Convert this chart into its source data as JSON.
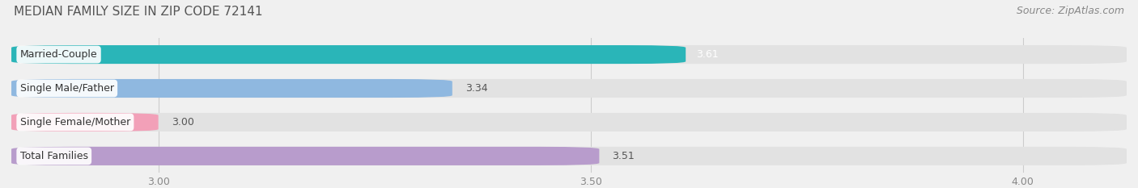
{
  "title": "MEDIAN FAMILY SIZE IN ZIP CODE 72141",
  "source": "Source: ZipAtlas.com",
  "categories": [
    "Married-Couple",
    "Single Male/Father",
    "Single Female/Mother",
    "Total Families"
  ],
  "values": [
    3.61,
    3.34,
    3.0,
    3.51
  ],
  "bar_colors": [
    "#2ab5b8",
    "#8fb8e0",
    "#f2a0b8",
    "#b89ccc"
  ],
  "value_white": [
    true,
    false,
    false,
    false
  ],
  "xlim_left": 2.83,
  "xlim_right": 4.12,
  "xticks": [
    3.0,
    3.5,
    4.0
  ],
  "xtick_labels": [
    "3.00",
    "3.50",
    "4.00"
  ],
  "bg_color": "#f0f0f0",
  "bar_bg_color": "#e2e2e2",
  "title_fontsize": 11,
  "source_fontsize": 9,
  "value_fontsize": 9,
  "category_fontsize": 9,
  "xtick_fontsize": 9
}
